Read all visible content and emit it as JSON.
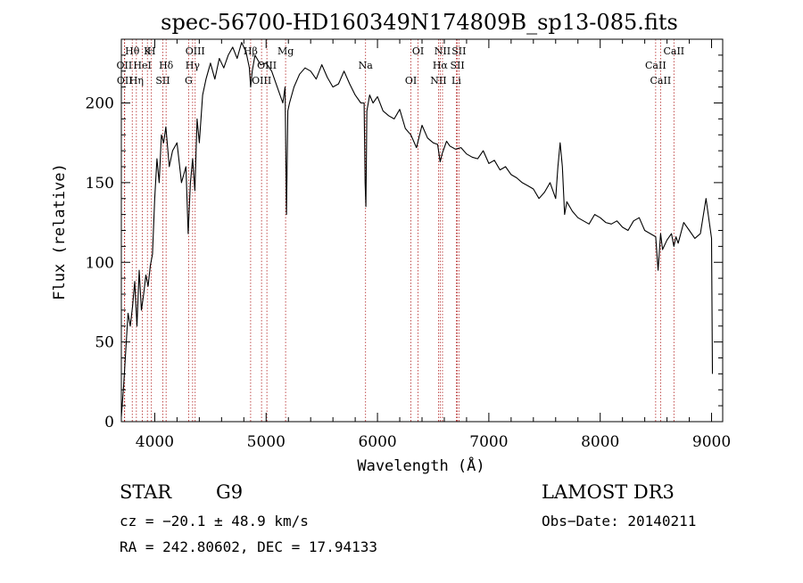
{
  "chart_data": {
    "type": "line",
    "title": "spec-56700-HD160349N174809B_sp13-085.fits",
    "xlabel": "Wavelength (Å)",
    "ylabel": "Flux (relative)",
    "xlim": [
      3700,
      9100
    ],
    "ylim": [
      0,
      240
    ],
    "xticks": [
      4000,
      5000,
      6000,
      7000,
      8000,
      9000
    ],
    "yticks": [
      0,
      50,
      100,
      150,
      200
    ],
    "grid": false,
    "series": [
      {
        "x": [
          3700,
          3720,
          3740,
          3760,
          3780,
          3800,
          3820,
          3840,
          3860,
          3880,
          3900,
          3920,
          3940,
          3960,
          3980,
          4000,
          4020,
          4040,
          4060,
          4080,
          4100,
          4130,
          4160,
          4200,
          4240,
          4280,
          4300,
          4320,
          4340,
          4360,
          4380,
          4400,
          4430,
          4460,
          4500,
          4540,
          4580,
          4620,
          4660,
          4700,
          4740,
          4780,
          4820,
          4850,
          4861,
          4875,
          4900,
          4950,
          5000,
          5050,
          5100,
          5150,
          5170,
          5183,
          5195,
          5210,
          5250,
          5300,
          5350,
          5400,
          5450,
          5500,
          5550,
          5600,
          5650,
          5700,
          5750,
          5800,
          5850,
          5880,
          5889,
          5896,
          5905,
          5930,
          5960,
          6000,
          6050,
          6100,
          6150,
          6200,
          6250,
          6300,
          6350,
          6400,
          6450,
          6500,
          6540,
          6563,
          6580,
          6620,
          6650,
          6700,
          6750,
          6800,
          6850,
          6900,
          6950,
          7000,
          7050,
          7100,
          7150,
          7200,
          7250,
          7300,
          7350,
          7400,
          7450,
          7500,
          7550,
          7600,
          7620,
          7640,
          7660,
          7680,
          7700,
          7750,
          7800,
          7850,
          7900,
          7950,
          8000,
          8050,
          8100,
          8150,
          8200,
          8250,
          8300,
          8350,
          8400,
          8450,
          8498,
          8520,
          8542,
          8560,
          8600,
          8640,
          8662,
          8680,
          8700,
          8750,
          8800,
          8850,
          8900,
          8950,
          9000,
          9008
        ],
        "y": [
          3,
          22,
          45,
          68,
          60,
          72,
          88,
          60,
          95,
          70,
          80,
          92,
          85,
          98,
          105,
          140,
          165,
          150,
          180,
          175,
          185,
          160,
          170,
          175,
          150,
          160,
          118,
          150,
          165,
          145,
          190,
          175,
          205,
          215,
          225,
          215,
          228,
          222,
          230,
          235,
          228,
          238,
          232,
          222,
          210,
          220,
          230,
          224,
          225,
          220,
          210,
          200,
          210,
          130,
          195,
          200,
          210,
          218,
          222,
          220,
          215,
          224,
          216,
          210,
          212,
          220,
          212,
          205,
          200,
          200,
          150,
          135,
          195,
          205,
          200,
          204,
          195,
          192,
          190,
          196,
          184,
          180,
          172,
          186,
          178,
          175,
          174,
          163,
          168,
          176,
          173,
          171,
          172,
          168,
          166,
          165,
          170,
          162,
          164,
          158,
          160,
          155,
          153,
          150,
          148,
          146,
          140,
          144,
          150,
          140,
          160,
          175,
          160,
          130,
          138,
          132,
          128,
          126,
          124,
          130,
          128,
          125,
          124,
          126,
          122,
          120,
          126,
          128,
          120,
          118,
          116,
          95,
          118,
          108,
          114,
          118,
          110,
          116,
          112,
          125,
          120,
          115,
          118,
          140,
          115,
          30
        ]
      }
    ],
    "lines": [
      {
        "label": "Hθ",
        "x": 3798
      },
      {
        "label": "OII",
        "x": 3727
      },
      {
        "label": "OII",
        "x": 3730
      },
      {
        "label": "K",
        "x": 3934
      },
      {
        "label": "HeI",
        "x": 3889
      },
      {
        "label": "Hη",
        "x": 3835
      },
      {
        "label": "H",
        "x": 3970
      },
      {
        "label": "Hδ",
        "x": 4102
      },
      {
        "label": "SII",
        "x": 4072
      },
      {
        "label": "OIII",
        "x": 4363
      },
      {
        "label": "Hγ",
        "x": 4340
      },
      {
        "label": "G",
        "x": 4304
      },
      {
        "label": "Hβ",
        "x": 4861
      },
      {
        "label": "OIII",
        "x": 5007
      },
      {
        "label": "OIII",
        "x": 4959
      },
      {
        "label": "Mg",
        "x": 5175
      },
      {
        "label": "Na",
        "x": 5893
      },
      {
        "label": "OI",
        "x": 6300
      },
      {
        "label": "OI",
        "x": 6364
      },
      {
        "label": "Hα",
        "x": 6563
      },
      {
        "label": "NII",
        "x": 6548
      },
      {
        "label": "NII",
        "x": 6584
      },
      {
        "label": "SII",
        "x": 6717
      },
      {
        "label": "Li",
        "x": 6708
      },
      {
        "label": "SII",
        "x": 6731
      },
      {
        "label": "CaII",
        "x": 8498
      },
      {
        "label": "CaII",
        "x": 8542
      },
      {
        "label": "CaII",
        "x": 8662
      }
    ],
    "line_color": "#b22222"
  },
  "info": {
    "object_class": "STAR",
    "subclass": "G9",
    "survey": "LAMOST DR3",
    "cz": "cz = −20.1 ± 48.9 km/s",
    "obs_date": "Obs−Date: 20140211",
    "coords": "RA = 242.80602, DEC =  17.94133"
  }
}
